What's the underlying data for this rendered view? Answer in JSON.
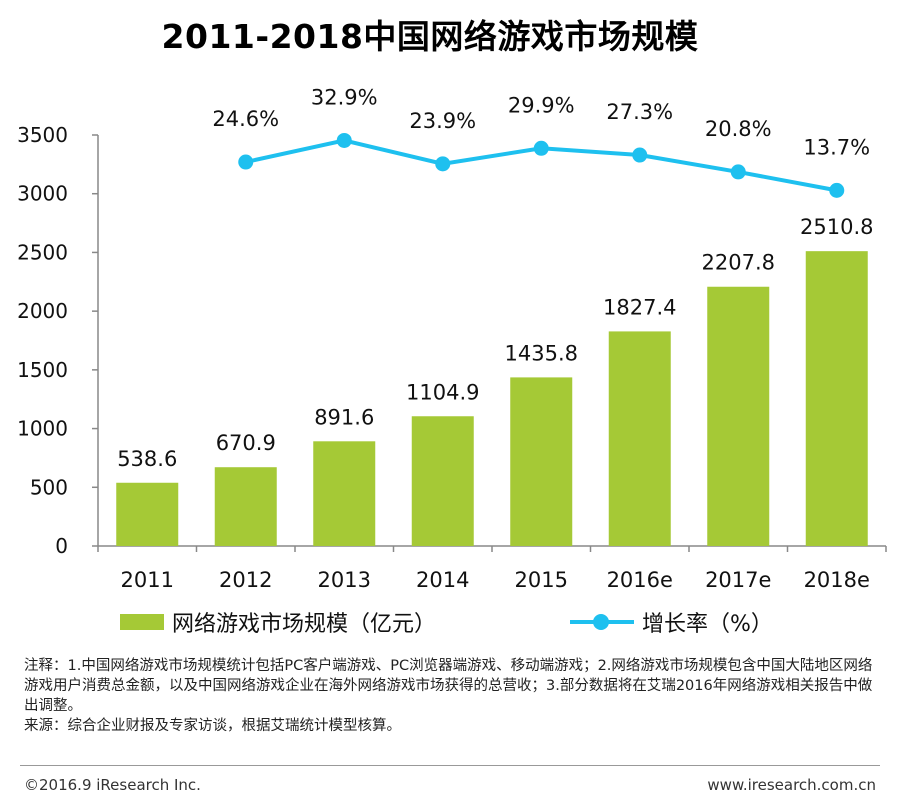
{
  "chart_data": {
    "type": "bar+line",
    "title": "2011-2018中国网络游戏市场规模",
    "categories": [
      "2011",
      "2012",
      "2013",
      "2014",
      "2015",
      "2016e",
      "2017e",
      "2018e"
    ],
    "series": [
      {
        "name": "网络游戏市场规模（亿元）",
        "type": "bar",
        "values": [
          538.6,
          670.9,
          891.6,
          1104.9,
          1435.8,
          1827.4,
          2207.8,
          2510.8
        ],
        "labels": [
          "538.6",
          "670.9",
          "891.6",
          "1104.9",
          "1435.8",
          "1827.4",
          "2207.8",
          "2510.8"
        ],
        "color": "#a5c936"
      },
      {
        "name": "增长率（%）",
        "type": "line",
        "values": [
          null,
          24.6,
          32.9,
          23.9,
          29.9,
          27.3,
          20.8,
          13.7
        ],
        "labels": [
          "",
          "24.6%",
          "32.9%",
          "23.9%",
          "29.9%",
          "27.3%",
          "20.8%",
          "13.7%"
        ],
        "color": "#1ec0ef"
      }
    ],
    "y_ticks": [
      "0",
      "500",
      "1000",
      "1500",
      "2000",
      "2500",
      "3000",
      "3500"
    ],
    "ylim": [
      0,
      3500
    ],
    "xlabel": "",
    "ylabel": "",
    "legend_position": "bottom"
  },
  "legend": {
    "bar_label": "网络游戏市场规模（亿元）",
    "line_label": "增长率（%）"
  },
  "notes": {
    "line1": "注释：1.中国网络游戏市场规模统计包括PC客户端游戏、PC浏览器端游戏、移动端游戏；2.网络游戏市场规模包含中国大陆地区网络游戏用户消费总金额，以及中国网络游戏企业在海外网络游戏市场获得的总营收；3.部分数据将在艾瑞2016年网络游戏相关报告中做出调整。",
    "line2": "来源：综合企业财报及专家访谈，根据艾瑞统计模型核算。"
  },
  "footer": {
    "copyright": "©2016.9 iResearch Inc.",
    "url": "www.iresearch.com.cn"
  }
}
